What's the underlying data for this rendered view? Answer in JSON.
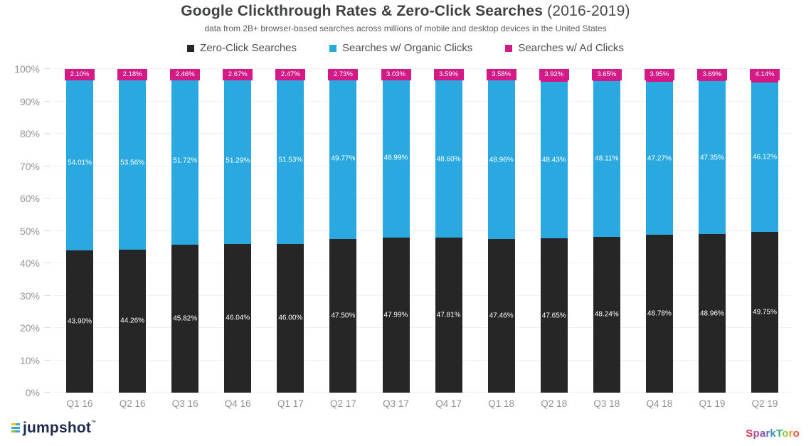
{
  "header": {
    "title_bold": "Google Clickthrough Rates & Zero-Click Searches",
    "title_suffix": " (2016-2019)",
    "subtitle": "data from 2B+ browser-based searches across millions of mobile and desktop devices in the United States"
  },
  "chart_data": {
    "type": "bar",
    "stacked": true,
    "title": "Google Clickthrough Rates & Zero-Click Searches (2016-2019)",
    "subtitle": "data from 2B+ browser-based searches across millions of mobile and desktop devices in the United States",
    "categories": [
      "Q1 16",
      "Q2 16",
      "Q3 16",
      "Q4 16",
      "Q1 17",
      "Q2 17",
      "Q3 17",
      "Q4 17",
      "Q1 18",
      "Q2 18",
      "Q3 18",
      "Q4 18",
      "Q1 19",
      "Q2 19"
    ],
    "series": [
      {
        "name": "Zero-Click Searches",
        "color": "#262626",
        "values": [
          43.9,
          44.26,
          45.82,
          46.04,
          46.0,
          47.5,
          47.99,
          47.81,
          47.46,
          47.65,
          48.24,
          48.78,
          48.96,
          49.75
        ]
      },
      {
        "name": "Searches w/ Organic Clicks",
        "color": "#29a9e0",
        "values": [
          54.01,
          53.56,
          51.72,
          51.29,
          51.53,
          49.77,
          48.99,
          48.6,
          48.96,
          48.43,
          48.11,
          47.27,
          47.35,
          46.12
        ]
      },
      {
        "name": "Searches w/ Ad Clicks",
        "color": "#d41a87",
        "values": [
          2.1,
          2.18,
          2.46,
          2.67,
          2.47,
          2.73,
          3.03,
          3.59,
          3.58,
          3.92,
          3.65,
          3.95,
          3.69,
          4.14
        ]
      }
    ],
    "y_ticks": [
      "100%",
      "90%",
      "80%",
      "70%",
      "60%",
      "50%",
      "40%",
      "30%",
      "20%",
      "10%",
      "0%"
    ],
    "ylim": [
      0,
      100
    ],
    "grid": true,
    "legend_position": "top",
    "value_suffix": "%"
  },
  "footer": {
    "left_logo_text": "jumpshot",
    "left_logo_trademark": "™",
    "right_logo_text": "SparkToro",
    "sparktoro_letters": [
      {
        "ch": "S",
        "color": "#d6395a"
      },
      {
        "ch": "p",
        "color": "#b5499c"
      },
      {
        "ch": "a",
        "color": "#8a55a8"
      },
      {
        "ch": "r",
        "color": "#5f6ab8"
      },
      {
        "ch": "k",
        "color": "#3a8fc4"
      },
      {
        "ch": "T",
        "color": "#31a877"
      },
      {
        "ch": "o",
        "color": "#8cc63f"
      },
      {
        "ch": "r",
        "color": "#f7941d"
      },
      {
        "ch": "o",
        "color": "#ed4d33"
      }
    ]
  }
}
